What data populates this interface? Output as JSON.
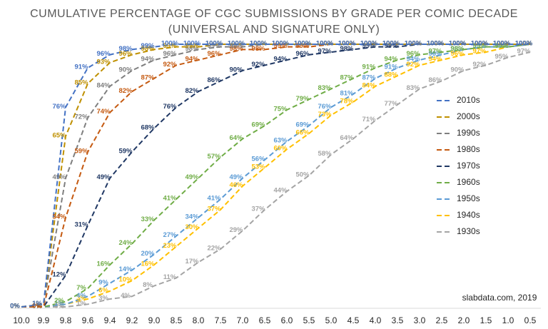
{
  "chart_data": {
    "type": "line",
    "title": "CUMULATIVE PERCENTAGE OF CGC SUBMISSIONS BY GRADE PER COMIC DECADE",
    "subtitle": "(UNIVERSAL AND SIGNATURE ONLY)",
    "annotation": "slabdata.com, 2019",
    "categories": [
      "10.0",
      "9.9",
      "9.8",
      "9.6",
      "9.4",
      "9.2",
      "9.0",
      "8.5",
      "8.0",
      "7.5",
      "7.0",
      "6.5",
      "6.0",
      "5.5",
      "5.0",
      "4.5",
      "4.0",
      "3.5",
      "3.0",
      "2.5",
      "2.0",
      "1.5",
      "1.0",
      "0.5"
    ],
    "ylim": [
      0,
      100
    ],
    "legend": "right",
    "series": [
      {
        "name": "2010s",
        "color": "#4472c4",
        "values": [
          0,
          1,
          76,
          91,
          96,
          98,
          99,
          100,
          100,
          100,
          100,
          100,
          100,
          100,
          100,
          100,
          100,
          100,
          100,
          100,
          100,
          100,
          100,
          100
        ],
        "value_labels": [
          "0%",
          "1%",
          "76%",
          "91%",
          "96%",
          "98%",
          "99%",
          "100%",
          "100%",
          "100%",
          "100%",
          "100%",
          "100%",
          "100%",
          "100%",
          "100%",
          "100%",
          "100%",
          "100%",
          "100%",
          "100%",
          "100%",
          "100%",
          "100%"
        ]
      },
      {
        "name": "2000s",
        "color": "#bf9000",
        "values": [
          0,
          1,
          65,
          85,
          93,
          96,
          98,
          99,
          99,
          100,
          100,
          100,
          100,
          100,
          100,
          100,
          100,
          100,
          100,
          100,
          100,
          100,
          100,
          100
        ],
        "value_labels": [
          "0%",
          "1%",
          "65%",
          "85%",
          "93%",
          "96%",
          "98%",
          "99%",
          "99%",
          "100%",
          "100%",
          "100%",
          "100%",
          "100%",
          "100%",
          "100%",
          "100%",
          "100%",
          "100%",
          "100%",
          "100%",
          "100%",
          "100%",
          "100%"
        ]
      },
      {
        "name": "1990s",
        "color": "#7f7f7f",
        "values": [
          0,
          1,
          49,
          72,
          84,
          90,
          94,
          96,
          98,
          99,
          99,
          100,
          100,
          100,
          100,
          100,
          100,
          100,
          100,
          100,
          100,
          100,
          100,
          100
        ],
        "value_labels": [
          "0%",
          "1%",
          "49%",
          "72%",
          "84%",
          "90%",
          "94%",
          "96%",
          "98%",
          "99%",
          "99%",
          "100%",
          "100%",
          "100%",
          "100%",
          "100%",
          "100%",
          "100%",
          "100%",
          "100%",
          "100%",
          "100%",
          "100%",
          "100%"
        ]
      },
      {
        "name": "1980s",
        "color": "#c55a11",
        "values": [
          0,
          0,
          34,
          59,
          74,
          82,
          87,
          92,
          94,
          96,
          98,
          98,
          99,
          99,
          100,
          100,
          100,
          100,
          100,
          100,
          100,
          100,
          100,
          100
        ],
        "value_labels": [
          "0%",
          "0%",
          "34%",
          "59%",
          "74%",
          "82%",
          "87%",
          "92%",
          "94%",
          "96%",
          "98%",
          "98%",
          "99%",
          "99%",
          "100%",
          "100%",
          "100%",
          "100%",
          "100%",
          "100%",
          "100%",
          "100%",
          "100%",
          "100%"
        ]
      },
      {
        "name": "1970s",
        "color": "#203864",
        "values": [
          0,
          0,
          12,
          31,
          49,
          59,
          68,
          76,
          82,
          86,
          90,
          92,
          94,
          96,
          97,
          98,
          99,
          99,
          100,
          100,
          100,
          100,
          100,
          100
        ],
        "value_labels": [
          "0%",
          "0%",
          "12%",
          "31%",
          "49%",
          "59%",
          "68%",
          "76%",
          "82%",
          "86%",
          "90%",
          "92%",
          "94%",
          "96%",
          "97%",
          "98%",
          "99%",
          "99%",
          "100%",
          "100%",
          "100%",
          "100%",
          "100%",
          "100%"
        ]
      },
      {
        "name": "1960s",
        "color": "#70ad47",
        "values": [
          0,
          0,
          2,
          7,
          16,
          24,
          33,
          41,
          49,
          57,
          64,
          69,
          75,
          79,
          83,
          87,
          91,
          94,
          96,
          97,
          98,
          99,
          99,
          100
        ],
        "value_labels": [
          "0%",
          "0%",
          "2%",
          "7%",
          "16%",
          "24%",
          "33%",
          "41%",
          "49%",
          "57%",
          "64%",
          "69%",
          "75%",
          "79%",
          "83%",
          "87%",
          "91%",
          "94%",
          "96%",
          "97%",
          "98%",
          "99%",
          "99%",
          "100%"
        ]
      },
      {
        "name": "1950s",
        "color": "#5b9bd5",
        "values": [
          0,
          0,
          1,
          4,
          9,
          14,
          20,
          27,
          34,
          41,
          49,
          56,
          63,
          69,
          76,
          81,
          87,
          91,
          94,
          96,
          98,
          99,
          99,
          100
        ],
        "value_labels": [
          "0%",
          "0%",
          "1%",
          "4%",
          "9%",
          "14%",
          "20%",
          "27%",
          "34%",
          "41%",
          "49%",
          "56%",
          "63%",
          "69%",
          "76%",
          "81%",
          "87%",
          "91%",
          "94%",
          "96%",
          "98%",
          "99%",
          "99%",
          "100%"
        ]
      },
      {
        "name": "1940s",
        "color": "#ffc000",
        "values": [
          0,
          0,
          1,
          3,
          6,
          10,
          16,
          23,
          30,
          37,
          46,
          53,
          60,
          66,
          73,
          78,
          84,
          88,
          92,
          94,
          96,
          97,
          99,
          100
        ],
        "value_labels": [
          "0%",
          "0%",
          "1%",
          "3%",
          "6%",
          "10%",
          "16%",
          "23%",
          "30%",
          "37%",
          "46%",
          "53%",
          "60%",
          "66%",
          "73%",
          "78%",
          "84%",
          "88%",
          "92%",
          "94%",
          "96%",
          "97%",
          "99%",
          "100%"
        ]
      },
      {
        "name": "1930s",
        "color": "#a5a5a5",
        "values": [
          0,
          0,
          0,
          1,
          3,
          4,
          8,
          11,
          17,
          22,
          29,
          37,
          44,
          50,
          58,
          64,
          71,
          77,
          83,
          86,
          90,
          92,
          95,
          97
        ],
        "value_labels": [
          "0%",
          "0%",
          "0%",
          "1%",
          "3%",
          "4%",
          "8%",
          "11%",
          "17%",
          "22%",
          "29%",
          "37%",
          "44%",
          "50%",
          "58%",
          "64%",
          "71%",
          "77%",
          "83%",
          "86%",
          "90%",
          "92%",
          "95%",
          "97%"
        ]
      }
    ]
  }
}
